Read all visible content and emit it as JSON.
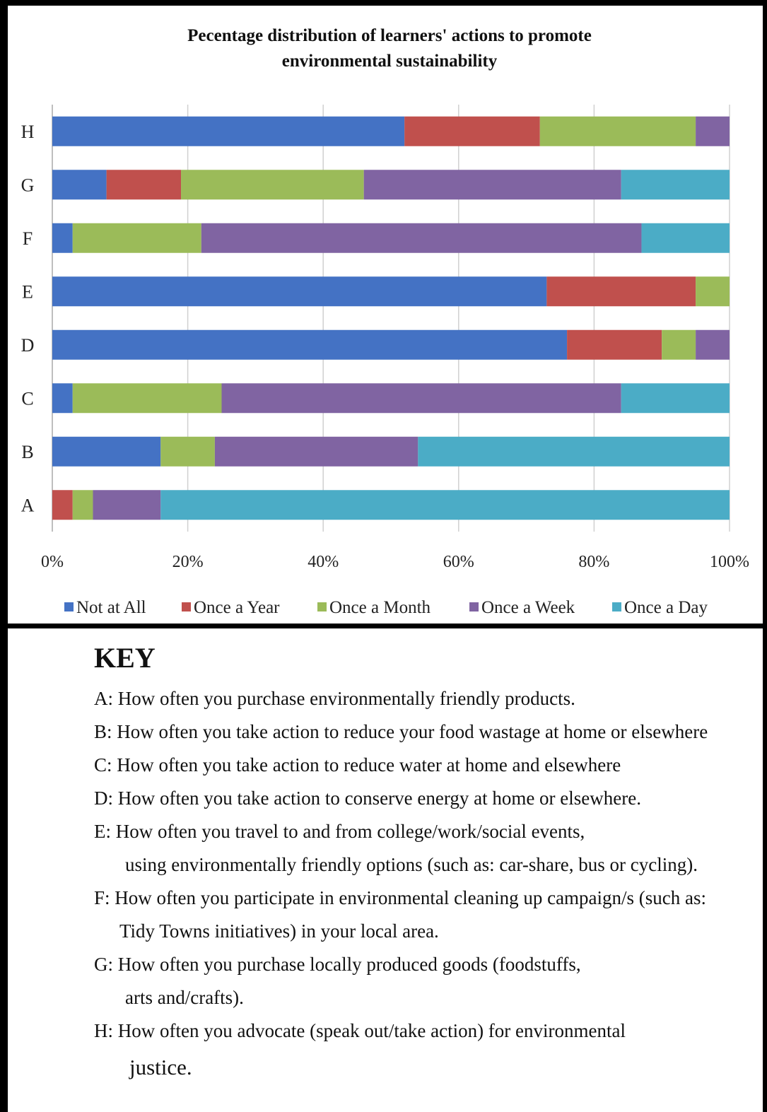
{
  "chart_data": {
    "type": "bar",
    "orientation": "horizontal",
    "stacked": true,
    "title": "Pecentage distribution of learners' actions to promote environmental sustainability",
    "title_lines": [
      "Pecentage distribution of learners' actions to promote",
      "environmental sustainability"
    ],
    "categories": [
      "A",
      "B",
      "C",
      "D",
      "E",
      "F",
      "G",
      "H"
    ],
    "xlim": [
      0,
      100
    ],
    "x_ticks": [
      "0%",
      "20%",
      "40%",
      "60%",
      "80%",
      "100%"
    ],
    "grid": true,
    "legend_position": "bottom",
    "series": [
      {
        "name": "Not at All",
        "color": "#4472C4",
        "values": [
          0,
          16,
          3,
          76,
          73,
          3,
          8,
          52
        ]
      },
      {
        "name": "Once a Year",
        "color": "#C0504D",
        "values": [
          3,
          0,
          0,
          14,
          22,
          0,
          11,
          20
        ]
      },
      {
        "name": "Once a Month",
        "color": "#9BBB59",
        "values": [
          3,
          8,
          22,
          5,
          5,
          19,
          27,
          23
        ]
      },
      {
        "name": "Once a Week",
        "color": "#8064A2",
        "values": [
          10,
          30,
          59,
          5,
          0,
          65,
          38,
          5
        ]
      },
      {
        "name": "Once a Day",
        "color": "#4BACC6",
        "values": [
          84,
          46,
          16,
          0,
          0,
          13,
          16,
          0
        ]
      }
    ]
  },
  "key": {
    "title": "KEY",
    "items": [
      {
        "id": "A",
        "line1": "A:  How often you purchase environmentally friendly products.",
        "line2": ""
      },
      {
        "id": "B",
        "line1": "B:  How often you take action to reduce your food wastage at home or elsewhere",
        "line2": ""
      },
      {
        "id": "C",
        "line1": "C:  How often you take action to reduce water at home and elsewhere",
        "line2": ""
      },
      {
        "id": "D",
        "line1": "D:  How often you take action to conserve energy at home or elsewhere.",
        "line2": ""
      },
      {
        "id": "E",
        "line1": "E:  How often you travel to and from college/work/social events,",
        "line2": "using environmentally friendly options (such as: car-share, bus or cycling)."
      },
      {
        "id": "F",
        "line1": "F:  How often you participate in environmental cleaning up campaign/s (such as:",
        "line2": "Tidy Towns initiatives) in your local area."
      },
      {
        "id": "G",
        "line1": "G:  How often you purchase locally produced goods (foodstuffs,",
        "line2": "arts and/crafts)."
      },
      {
        "id": "H",
        "line1": "H:  How often you advocate (speak out/take action) for environmental",
        "line2": "justice."
      }
    ]
  }
}
